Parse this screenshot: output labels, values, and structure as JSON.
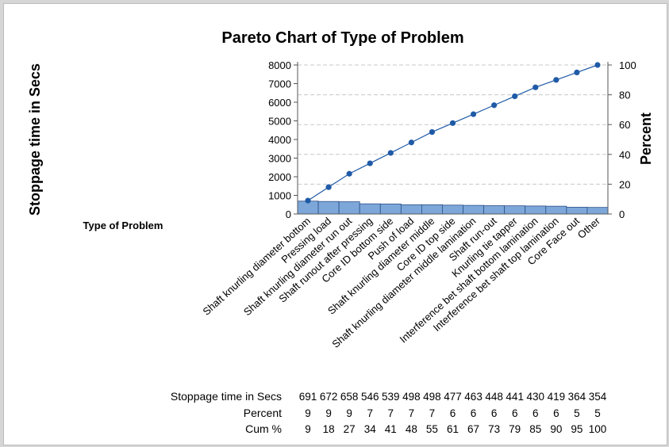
{
  "chart_data": {
    "type": "bar",
    "title": "Pareto Chart of Type of Problem",
    "ylabel": "Stoppage time in Secs",
    "y2label": "Percent",
    "xlabel": "Type of Problem",
    "ylim": [
      0,
      8000
    ],
    "y2lim": [
      0,
      100
    ],
    "yticks": [
      "0",
      "1000",
      "2000",
      "3000",
      "4000",
      "5000",
      "6000",
      "7000",
      "8000"
    ],
    "y2ticks": [
      "0",
      "20",
      "40",
      "60",
      "80",
      "100"
    ],
    "categories": [
      "Shaft knurling diameter bottom",
      "Pressing load",
      "Shaft knurling diameter run out",
      "Shaft runout after pressing",
      "Core ID bottom side",
      "Push of load",
      "Shaft knurling diameter middle",
      "Core ID top side",
      "Shaft knurling diameter middle lamination",
      "Shaft run-out",
      "Knurling tie tapper",
      "Interference bet shaft bottom lamination",
      "Interference bet shaft top lamination",
      "Core Face out",
      "Other"
    ],
    "values": [
      691,
      672,
      658,
      546,
      539,
      498,
      498,
      477,
      463,
      448,
      441,
      430,
      419,
      364,
      354
    ],
    "cum_pct": [
      9,
      18,
      27,
      34,
      41,
      48,
      55,
      61,
      67,
      73,
      79,
      85,
      90,
      95,
      100
    ],
    "table": {
      "row_labels": [
        "Stoppage time in Secs",
        "Percent",
        "Cum %"
      ],
      "counts": [
        "691",
        "672",
        "658",
        "546",
        "539",
        "498",
        "498",
        "477",
        "463",
        "448",
        "441",
        "430",
        "419",
        "364",
        "354"
      ],
      "percent": [
        "9",
        "9",
        "9",
        "7",
        "7",
        "7",
        "7",
        "6",
        "6",
        "6",
        "6",
        "6",
        "6",
        "5",
        "5"
      ],
      "cum": [
        "9",
        "18",
        "27",
        "34",
        "41",
        "48",
        "55",
        "61",
        "67",
        "73",
        "79",
        "85",
        "90",
        "95",
        "100"
      ]
    },
    "colors": {
      "bar_fill": "#7da7d9",
      "bar_stroke": "#2c4f8a",
      "line": "#1f5aa6",
      "grid": "#c8c8c8"
    },
    "grid": true
  }
}
